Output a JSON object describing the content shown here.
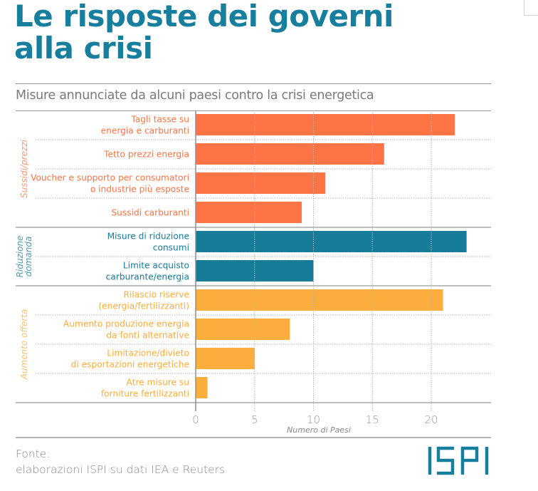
{
  "header": {
    "title_line1": "Le risposte dei governi",
    "title_line2": "alla crisi",
    "subtitle": "Misure annunciate da alcuni paesi contro la crisi energetica"
  },
  "footer": {
    "source_label": "Fonte:",
    "source_text": "elaborazioni ISPI su dati IEA e Reuters",
    "logo_text": "ISPI"
  },
  "colors": {
    "title": "#177f9d",
    "sussidi": "#ff7445",
    "riduzione": "#177b9a",
    "aumento": "#fbad3e"
  },
  "chart_data": {
    "type": "bar",
    "orientation": "horizontal",
    "title": "Misure annunciate da alcuni paesi contro la crisi energetica",
    "xlabel": "Numero di Paesi",
    "ylabel": "",
    "xlim": [
      0,
      25
    ],
    "xticks": [
      0,
      5,
      10,
      15,
      20
    ],
    "grid": true,
    "groups": [
      {
        "name": "Sussidi/prezzi",
        "color_key": "sussidi",
        "categories": [
          [
            "Tagli tasse su",
            "energia e carburanti"
          ],
          [
            "Tetto prezzi energia"
          ],
          [
            "Voucher e supporto per consumatori",
            "o industrie più esposte"
          ],
          [
            "Sussidi carburanti"
          ]
        ],
        "values": [
          22,
          16,
          11,
          9
        ]
      },
      {
        "name": "Riduzione domanda",
        "name_lines": [
          "Riduzione",
          "domanda"
        ],
        "color_key": "riduzione",
        "categories": [
          [
            "Misure di riduzione",
            "consumi"
          ],
          [
            "Limite acquisto",
            "carburante/energia"
          ]
        ],
        "values": [
          23,
          10
        ]
      },
      {
        "name": "Aumento offerta",
        "color_key": "aumento",
        "categories": [
          [
            "Rilascio riserve",
            "(energia/fertilizzanti)"
          ],
          [
            "Aumento produzione energia",
            "da fonti alternative"
          ],
          [
            "Limitazione/divieto",
            "di esportazioni energetiche"
          ],
          [
            "Atre misure su",
            "forniture fertilizzanti"
          ]
        ],
        "values": [
          21,
          8,
          5,
          1
        ]
      }
    ]
  }
}
